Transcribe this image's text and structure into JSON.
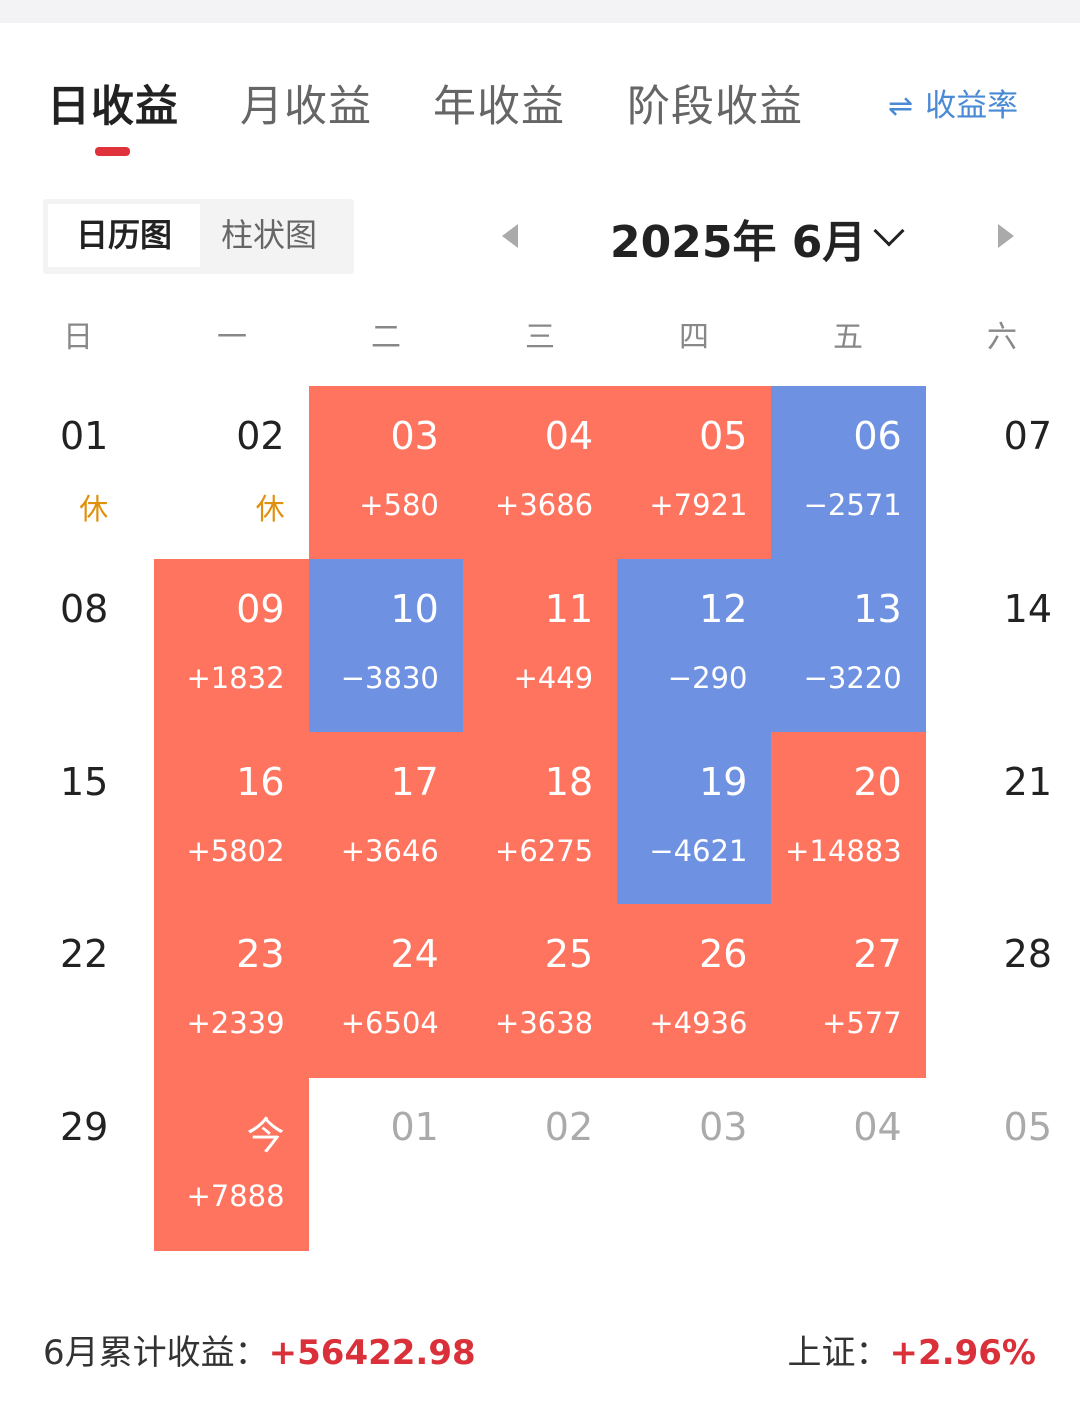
{
  "tabs": [
    {
      "label": "日收益",
      "active": true
    },
    {
      "label": "月收益",
      "active": false
    },
    {
      "label": "年收益",
      "active": false
    },
    {
      "label": "阶段收益",
      "active": false
    }
  ],
  "rate_toggle": {
    "icon": "⇌",
    "label": "收益率"
  },
  "view_switch": {
    "calendar": "日历图",
    "bar": "柱状图",
    "active": "calendar"
  },
  "month_nav": {
    "label": "2025年 6月"
  },
  "weekdays": [
    "日",
    "一",
    "二",
    "三",
    "四",
    "五",
    "六"
  ],
  "colors": {
    "gain": "#fe745f",
    "loss": "#6f91e2",
    "accent": "#e0323a",
    "rest": "#e0900c",
    "link": "#4a8ad4"
  },
  "calendar": {
    "rows": [
      [
        {
          "day": "01",
          "note": "休",
          "type": "weekend"
        },
        {
          "day": "02",
          "note": "休",
          "type": "holiday"
        },
        {
          "day": "03",
          "value": "+580",
          "type": "up"
        },
        {
          "day": "04",
          "value": "+3686",
          "type": "up"
        },
        {
          "day": "05",
          "value": "+7921",
          "type": "up"
        },
        {
          "day": "06",
          "value": "−2571",
          "type": "down"
        },
        {
          "day": "07",
          "type": "sat"
        }
      ],
      [
        {
          "day": "08",
          "type": "weekend"
        },
        {
          "day": "09",
          "value": "+1832",
          "type": "up"
        },
        {
          "day": "10",
          "value": "−3830",
          "type": "down"
        },
        {
          "day": "11",
          "value": "+449",
          "type": "up"
        },
        {
          "day": "12",
          "value": "−290",
          "type": "down"
        },
        {
          "day": "13",
          "value": "−3220",
          "type": "down"
        },
        {
          "day": "14",
          "type": "sat"
        }
      ],
      [
        {
          "day": "15",
          "type": "weekend"
        },
        {
          "day": "16",
          "value": "+5802",
          "type": "up"
        },
        {
          "day": "17",
          "value": "+3646",
          "type": "up"
        },
        {
          "day": "18",
          "value": "+6275",
          "type": "up"
        },
        {
          "day": "19",
          "value": "−4621",
          "type": "down"
        },
        {
          "day": "20",
          "value": "+14883",
          "type": "up"
        },
        {
          "day": "21",
          "type": "sat"
        }
      ],
      [
        {
          "day": "22",
          "type": "weekend"
        },
        {
          "day": "23",
          "value": "+2339",
          "type": "up"
        },
        {
          "day": "24",
          "value": "+6504",
          "type": "up"
        },
        {
          "day": "25",
          "value": "+3638",
          "type": "up"
        },
        {
          "day": "26",
          "value": "+4936",
          "type": "up"
        },
        {
          "day": "27",
          "value": "+577",
          "type": "up"
        },
        {
          "day": "28",
          "type": "sat"
        }
      ],
      [
        {
          "day": "29",
          "type": "weekend"
        },
        {
          "day": "今",
          "value": "+7888",
          "type": "up"
        },
        {
          "day": "01",
          "type": "next"
        },
        {
          "day": "02",
          "type": "next"
        },
        {
          "day": "03",
          "type": "next"
        },
        {
          "day": "04",
          "type": "next"
        },
        {
          "day": "05",
          "type": "next-sat"
        }
      ]
    ]
  },
  "footer": {
    "sum_label": "6月累计收益：",
    "sum_value": "+56422.98",
    "index_label": "上证：",
    "index_value": "+2.96%"
  }
}
